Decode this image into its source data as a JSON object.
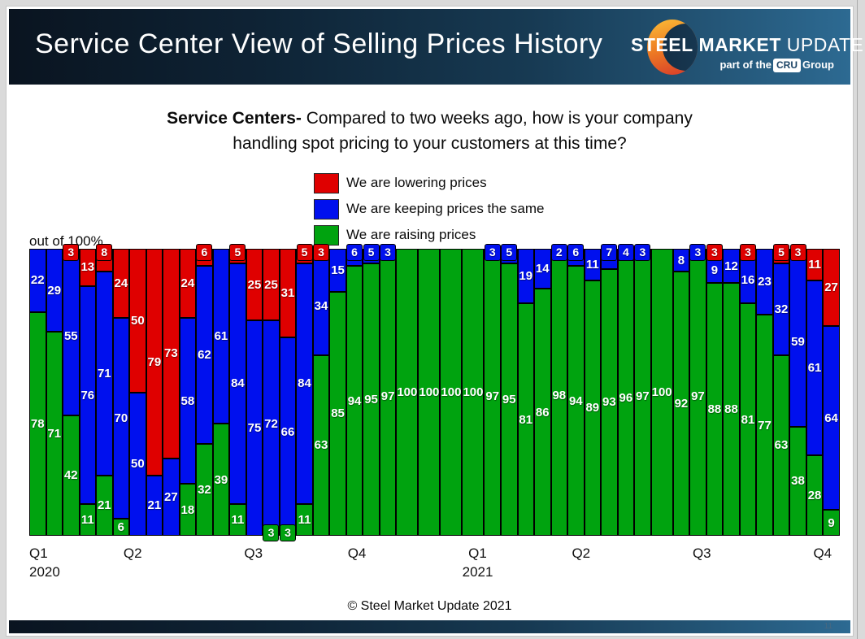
{
  "header": {
    "title": "Service Center View of Selling Prices History",
    "logo": {
      "steel": "STEEL",
      "market": "MARKET",
      "update": "UPDATE",
      "tagline_prefix": "part of the",
      "cru": "CRU",
      "tagline_suffix": "Group"
    }
  },
  "question": {
    "bold": "Service Centers-",
    "line1_rest": " Compared to two weeks ago, how is your company",
    "line2": "handling spot pricing to your customers at this time?"
  },
  "legend": [
    {
      "key": "lowering",
      "label": "We are lowering prices",
      "color": "#df0000"
    },
    {
      "key": "keeping",
      "label": "We are keeping prices the same",
      "color": "#0010ee"
    },
    {
      "key": "raising",
      "label": "We are raising prices",
      "color": "#00a30f"
    }
  ],
  "axis_note": "out of 100%",
  "footer": {
    "copyright": "© Steel Market Update 2021",
    "page_number": "11"
  },
  "chart_data": {
    "type": "bar",
    "stacked": true,
    "ylim": [
      0,
      100
    ],
    "ylabel": "out of 100%",
    "grid": false,
    "legend_position": "top-center",
    "stack_order_top_to_bottom": [
      "lowering",
      "keeping",
      "raising"
    ],
    "colors": {
      "lowering": "#df0000",
      "keeping": "#0010ee",
      "raising": "#00a30f"
    },
    "x_axis_ticks": [
      {
        "label": "Q1",
        "sublabel": "2020",
        "bar": 1,
        "align": "left"
      },
      {
        "label": "Q2",
        "bar": 6.5
      },
      {
        "label": "Q3",
        "bar": 13.5
      },
      {
        "label": "Q4",
        "bar": 19.5
      },
      {
        "label": "Q1",
        "sublabel": "2021",
        "bar": 26.5
      },
      {
        "label": "Q2",
        "bar": 32.5
      },
      {
        "label": "Q3",
        "bar": 39.5
      },
      {
        "label": "Q4",
        "bar": 46.5
      }
    ],
    "bars": [
      {
        "raising": 78,
        "keeping": 22,
        "lowering": 0
      },
      {
        "raising": 71,
        "keeping": 29,
        "lowering": 0
      },
      {
        "raising": 42,
        "keeping": 55,
        "lowering": 3
      },
      {
        "raising": 11,
        "keeping": 76,
        "lowering": 13
      },
      {
        "raising": 21,
        "keeping": 71,
        "lowering": 8
      },
      {
        "raising": 6,
        "keeping": 70,
        "lowering": 24
      },
      {
        "raising": 0,
        "keeping": 50,
        "lowering": 50
      },
      {
        "raising": 0,
        "keeping": 21,
        "lowering": 79
      },
      {
        "raising": 0,
        "keeping": 27,
        "lowering": 73
      },
      {
        "raising": 18,
        "keeping": 58,
        "lowering": 24
      },
      {
        "raising": 32,
        "keeping": 62,
        "lowering": 6
      },
      {
        "raising": 39,
        "keeping": 61,
        "lowering": 0
      },
      {
        "raising": 11,
        "keeping": 84,
        "lowering": 5
      },
      {
        "raising": 0,
        "keeping": 75,
        "lowering": 25
      },
      {
        "raising": 3,
        "keeping": 72,
        "lowering": 25
      },
      {
        "raising": 3,
        "keeping": 66,
        "lowering": 31
      },
      {
        "raising": 11,
        "keeping": 84,
        "lowering": 5
      },
      {
        "raising": 63,
        "keeping": 34,
        "lowering": 3
      },
      {
        "raising": 85,
        "keeping": 15,
        "lowering": 0
      },
      {
        "raising": 94,
        "keeping": 6,
        "lowering": 0
      },
      {
        "raising": 95,
        "keeping": 5,
        "lowering": 0
      },
      {
        "raising": 97,
        "keeping": 3,
        "lowering": 0
      },
      {
        "raising": 100,
        "keeping": 0,
        "lowering": 0
      },
      {
        "raising": 100,
        "keeping": 0,
        "lowering": 0
      },
      {
        "raising": 100,
        "keeping": 0,
        "lowering": 0
      },
      {
        "raising": 100,
        "keeping": 0,
        "lowering": 0
      },
      {
        "raising": 97,
        "keeping": 3,
        "lowering": 0
      },
      {
        "raising": 95,
        "keeping": 5,
        "lowering": 0
      },
      {
        "raising": 81,
        "keeping": 19,
        "lowering": 0
      },
      {
        "raising": 86,
        "keeping": 14,
        "lowering": 0
      },
      {
        "raising": 98,
        "keeping": 2,
        "lowering": 0
      },
      {
        "raising": 94,
        "keeping": 6,
        "lowering": 0
      },
      {
        "raising": 89,
        "keeping": 11,
        "lowering": 0
      },
      {
        "raising": 93,
        "keeping": 7,
        "lowering": 0
      },
      {
        "raising": 96,
        "keeping": 4,
        "lowering": 0
      },
      {
        "raising": 97,
        "keeping": 3,
        "lowering": 0
      },
      {
        "raising": 100,
        "keeping": 0,
        "lowering": 0
      },
      {
        "raising": 92,
        "keeping": 8,
        "lowering": 0
      },
      {
        "raising": 97,
        "keeping": 3,
        "lowering": 0
      },
      {
        "raising": 88,
        "keeping": 9,
        "lowering": 3
      },
      {
        "raising": 88,
        "keeping": 12,
        "lowering": 0
      },
      {
        "raising": 81,
        "keeping": 16,
        "lowering": 3
      },
      {
        "raising": 77,
        "keeping": 23,
        "lowering": 0
      },
      {
        "raising": 63,
        "keeping": 32,
        "lowering": 5
      },
      {
        "raising": 38,
        "keeping": 59,
        "lowering": 3
      },
      {
        "raising": 28,
        "keeping": 61,
        "lowering": 11
      },
      {
        "raising": 9,
        "keeping": 64,
        "lowering": 27
      }
    ]
  }
}
